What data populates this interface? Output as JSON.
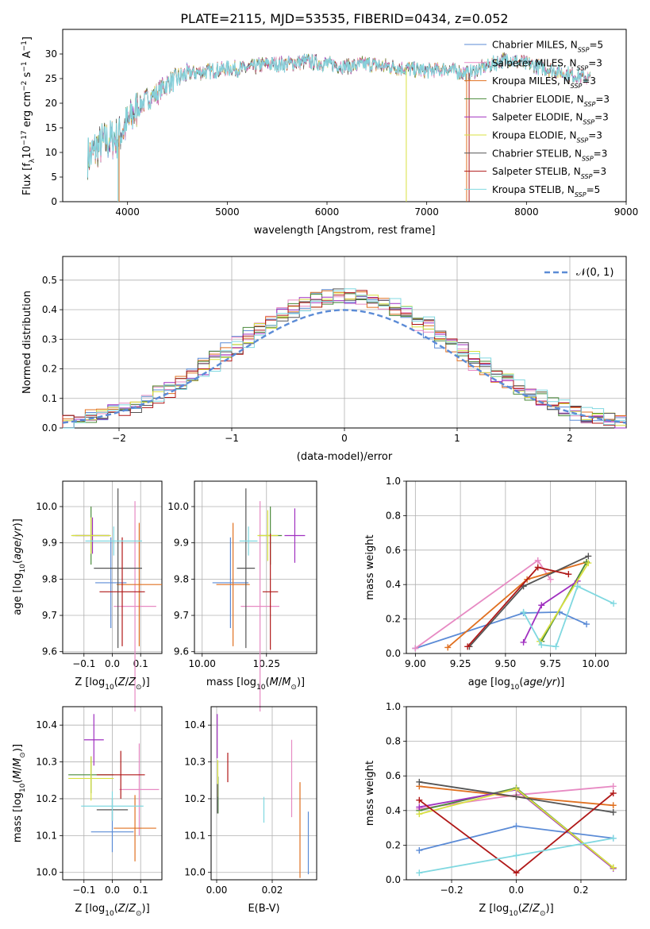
{
  "figure": {
    "title": "PLATE=2115, MJD=53535, FIBERID=0434, z=0.052"
  },
  "palette": {
    "Chabrier MILES": "#5b8bd6",
    "Salpeter MILES": "#e78ac3",
    "Kroupa MILES": "#e07020",
    "Chabrier ELODIE": "#4a8a3a",
    "Salpeter ELODIE": "#a030c0",
    "Kroupa ELODIE": "#d8e040",
    "Chabrier STELIB": "#555555",
    "Salpeter STELIB": "#b01818",
    "Kroupa STELIB": "#80d8e0"
  },
  "chart_data": [
    {
      "id": "spectrum",
      "type": "line",
      "xlabel": "wavelength [Angstrom, rest frame]",
      "ylabel": "Flux [f",
      "ylabel_html": [
        "Flux [f",
        "λ",
        "10",
        "−17",
        " erg cm",
        "−2",
        " s",
        "−1",
        " A",
        "−1",
        "]"
      ],
      "xlim": [
        3350,
        9000
      ],
      "ylim": [
        0,
        35
      ],
      "xticks": [
        4000,
        5000,
        6000,
        7000,
        8000,
        9000
      ],
      "yticks": [
        0,
        5,
        10,
        15,
        20,
        25,
        30
      ],
      "legend_position": "top-right",
      "continuum_points": [
        [
          3600,
          9
        ],
        [
          3750,
          12
        ],
        [
          3900,
          13
        ],
        [
          4000,
          16
        ],
        [
          4100,
          19
        ],
        [
          4200,
          21
        ],
        [
          4300,
          22
        ],
        [
          4400,
          24
        ],
        [
          4600,
          26
        ],
        [
          4800,
          26.5
        ],
        [
          5000,
          27
        ],
        [
          5200,
          27
        ],
        [
          5400,
          28
        ],
        [
          5600,
          28
        ],
        [
          5800,
          28.5
        ],
        [
          6000,
          28
        ],
        [
          6200,
          27.5
        ],
        [
          6400,
          28
        ],
        [
          6600,
          27.5
        ],
        [
          6800,
          27
        ],
        [
          7000,
          26.5
        ],
        [
          7200,
          27
        ],
        [
          7400,
          26
        ],
        [
          7600,
          27.5
        ],
        [
          7800,
          29
        ],
        [
          8000,
          28
        ],
        [
          8200,
          27
        ],
        [
          8400,
          26
        ],
        [
          8640,
          25
        ]
      ],
      "series": [
        {
          "name": "Chabrier MILES",
          "nssp": "5"
        },
        {
          "name": "Salpeter MILES",
          "nssp": "3"
        },
        {
          "name": "Kroupa MILES",
          "nssp": "3"
        },
        {
          "name": "Chabrier ELODIE",
          "nssp": "3"
        },
        {
          "name": "Salpeter ELODIE",
          "nssp": "3"
        },
        {
          "name": "Kroupa ELODIE",
          "nssp": "3"
        },
        {
          "name": "Chabrier STELIB",
          "nssp": "3"
        },
        {
          "name": "Salpeter STELIB",
          "nssp": "3"
        },
        {
          "name": "Kroupa STELIB",
          "nssp": "5"
        }
      ]
    },
    {
      "id": "residuals",
      "type": "area",
      "xlabel": "(data-model)/error",
      "ylabel": "Normed distribution",
      "xlim": [
        -2.5,
        2.5
      ],
      "ylim": [
        0,
        0.58
      ],
      "xticks": [
        -2,
        -1,
        0,
        1,
        2
      ],
      "yticks": [
        0.0,
        0.1,
        0.2,
        0.3,
        0.4,
        0.5
      ],
      "legend_position": "top-right",
      "legend_label": "𝒩(0, 1)",
      "bin_width": 0.1
    },
    {
      "id": "z-age",
      "type": "scatter",
      "xlabel": "Z [log10(Z/Z⊙)]",
      "ylabel": "age  [log10(age/yr)]",
      "xlim": [
        -0.175,
        0.175
      ],
      "ylim": [
        9.595,
        10.07
      ],
      "xticks": [
        -0.1,
        0.0,
        0.1
      ],
      "yticks": [
        9.6,
        9.7,
        9.8,
        9.9,
        10.0
      ],
      "points": [
        {
          "name": "Chabrier MILES",
          "x": -0.005,
          "y": 9.79,
          "xerr": 0.055,
          "yerr": 0.125
        },
        {
          "name": "Salpeter MILES",
          "x": 0.08,
          "y": 9.725,
          "xerr": 0.075,
          "yerr": 0.29
        },
        {
          "name": "Kroupa MILES",
          "x": 0.095,
          "y": 9.785,
          "xerr": 0.08,
          "yerr": 0.17
        },
        {
          "name": "Chabrier ELODIE",
          "x": -0.075,
          "y": 9.92,
          "xerr": 0.065,
          "yerr": 0.08
        },
        {
          "name": "Salpeter ELODIE",
          "x": -0.07,
          "y": 9.92,
          "xerr": 0.06,
          "yerr": 0.05
        },
        {
          "name": "Kroupa ELODIE",
          "x": -0.075,
          "y": 9.92,
          "xerr": 0.07,
          "yerr": 0.05
        },
        {
          "name": "Chabrier STELIB",
          "x": 0.02,
          "y": 9.83,
          "xerr": 0.085,
          "yerr": 0.22
        },
        {
          "name": "Salpeter STELIB",
          "x": 0.035,
          "y": 9.765,
          "xerr": 0.08,
          "yerr": 0.15
        },
        {
          "name": "Kroupa STELIB",
          "x": 0.005,
          "y": 9.905,
          "xerr": 0.1,
          "yerr": 0.04
        }
      ]
    },
    {
      "id": "mass-age",
      "type": "scatter",
      "xlabel": "mass [log10(M/M⊙)]",
      "ylabel": "",
      "xlim": [
        9.97,
        10.445
      ],
      "ylim": [
        9.595,
        10.07
      ],
      "xticks": [
        10.0,
        10.25
      ],
      "yticks": [
        9.6,
        9.7,
        9.8,
        9.9,
        10.0
      ],
      "points": [
        {
          "name": "Chabrier MILES",
          "x": 10.11,
          "y": 9.79,
          "xerr": 0.07,
          "yerr": 0.125
        },
        {
          "name": "Salpeter MILES",
          "x": 10.225,
          "y": 9.725,
          "xerr": 0.075,
          "yerr": 0.29
        },
        {
          "name": "Kroupa MILES",
          "x": 10.12,
          "y": 9.785,
          "xerr": 0.065,
          "yerr": 0.17
        },
        {
          "name": "Chabrier ELODIE",
          "x": 10.265,
          "y": 9.92,
          "xerr": 0.045,
          "yerr": 0.08
        },
        {
          "name": "Salpeter ELODIE",
          "x": 10.36,
          "y": 9.92,
          "xerr": 0.04,
          "yerr": 0.075
        },
        {
          "name": "Kroupa ELODIE",
          "x": 10.255,
          "y": 9.92,
          "xerr": 0.04,
          "yerr": 0.07
        },
        {
          "name": "Chabrier STELIB",
          "x": 10.17,
          "y": 9.83,
          "xerr": 0.035,
          "yerr": 0.22
        },
        {
          "name": "Salpeter STELIB",
          "x": 10.265,
          "y": 9.765,
          "xerr": 0.03,
          "yerr": 0.16
        },
        {
          "name": "Kroupa STELIB",
          "x": 10.18,
          "y": 9.905,
          "xerr": 0.035,
          "yerr": 0.04
        }
      ]
    },
    {
      "id": "age-weight",
      "type": "line",
      "xlabel": "age  [log10(age/yr)]",
      "ylabel": "mass weight",
      "xlim": [
        8.95,
        10.17
      ],
      "ylim": [
        0,
        1.0
      ],
      "xticks": [
        9.0,
        9.25,
        9.5,
        9.75,
        10.0
      ],
      "yticks": [
        0.0,
        0.2,
        0.4,
        0.6,
        0.8,
        1.0
      ],
      "series": [
        {
          "name": "Chabrier MILES",
          "x": [
            9.0,
            9.6,
            9.8,
            9.95
          ],
          "y": [
            0.03,
            0.235,
            0.24,
            0.17
          ]
        },
        {
          "name": "Salpeter MILES",
          "x": [
            9.0,
            9.68,
            9.75
          ],
          "y": [
            0.03,
            0.54,
            0.43
          ]
        },
        {
          "name": "Kroupa MILES",
          "x": [
            9.18,
            9.62,
            9.95
          ],
          "y": [
            0.035,
            0.43,
            0.53
          ]
        },
        {
          "name": "Chabrier ELODIE",
          "x": [
            9.7,
            9.95
          ],
          "y": [
            0.07,
            0.53
          ]
        },
        {
          "name": "Salpeter ELODIE",
          "x": [
            9.6,
            9.7,
            9.9
          ],
          "y": [
            0.065,
            0.28,
            0.42
          ]
        },
        {
          "name": "Kroupa ELODIE",
          "x": [
            9.69,
            9.96
          ],
          "y": [
            0.07,
            0.525
          ]
        },
        {
          "name": "Chabrier STELIB",
          "x": [
            9.3,
            9.6,
            9.96
          ],
          "y": [
            0.04,
            0.39,
            0.565
          ]
        },
        {
          "name": "Salpeter STELIB",
          "x": [
            9.29,
            9.68,
            9.85
          ],
          "y": [
            0.04,
            0.5,
            0.46
          ]
        },
        {
          "name": "Kroupa STELIB",
          "x": [
            9.6,
            9.7,
            9.78,
            9.9,
            10.1
          ],
          "y": [
            0.24,
            0.05,
            0.04,
            0.39,
            0.29
          ]
        }
      ]
    },
    {
      "id": "z-mass",
      "type": "scatter",
      "xlabel": "Z [log10(Z/Z⊙)]",
      "ylabel": "mass [log10(M/M⊙)]",
      "xlim": [
        -0.175,
        0.175
      ],
      "ylim": [
        9.98,
        10.45
      ],
      "xticks": [
        -0.1,
        0.0,
        0.1
      ],
      "yticks": [
        10.0,
        10.1,
        10.2,
        10.3,
        10.4
      ],
      "points": [
        {
          "name": "Chabrier MILES",
          "x": 0.0,
          "y": 10.11,
          "xerr": 0.075,
          "yerr": 0.055
        },
        {
          "name": "Salpeter MILES",
          "x": 0.095,
          "y": 10.225,
          "xerr": 0.07,
          "yerr": 0.125
        },
        {
          "name": "Kroupa MILES",
          "x": 0.08,
          "y": 10.12,
          "xerr": 0.075,
          "yerr": 0.09
        },
        {
          "name": "Chabrier ELODIE",
          "x": -0.075,
          "y": 10.265,
          "xerr": 0.08,
          "yerr": 0.05
        },
        {
          "name": "Salpeter ELODIE",
          "x": -0.065,
          "y": 10.36,
          "xerr": 0.035,
          "yerr": 0.07
        },
        {
          "name": "Kroupa ELODIE",
          "x": -0.075,
          "y": 10.255,
          "xerr": 0.08,
          "yerr": 0.06
        },
        {
          "name": "Chabrier STELIB",
          "x": 0.0,
          "y": 10.17,
          "xerr": 0.055,
          "yerr": 0.03
        },
        {
          "name": "Salpeter STELIB",
          "x": 0.03,
          "y": 10.265,
          "xerr": 0.085,
          "yerr": 0.065
        },
        {
          "name": "Kroupa STELIB",
          "x": 0.0,
          "y": 10.18,
          "xerr": 0.11,
          "yerr": 0.04
        }
      ]
    },
    {
      "id": "ebv",
      "type": "scatter",
      "xlabel": "E(B-V)",
      "ylabel": "",
      "xlim": [
        -0.002,
        0.036
      ],
      "ylim": [
        9.98,
        10.45
      ],
      "xticks": [
        0.0,
        0.02
      ],
      "xtick_labels": [
        "0.00",
        "0.02"
      ],
      "yticks": [
        10.0,
        10.1,
        10.2,
        10.3,
        10.4
      ],
      "points": [
        {
          "name": "Chabrier MILES",
          "x": 0.033,
          "y": 10.08,
          "xerr": 0,
          "yerr": 0.085
        },
        {
          "name": "Salpeter MILES",
          "x": 0.027,
          "y": 10.255,
          "xerr": 0,
          "yerr": 0.105
        },
        {
          "name": "Kroupa MILES",
          "x": 0.03,
          "y": 10.115,
          "xerr": 0,
          "yerr": 0.13
        },
        {
          "name": "Chabrier ELODIE",
          "x": 0.0005,
          "y": 10.21,
          "xerr": 0,
          "yerr": 0.05
        },
        {
          "name": "Salpeter ELODIE",
          "x": 0.0002,
          "y": 10.37,
          "xerr": 0,
          "yerr": 0.06
        },
        {
          "name": "Kroupa ELODIE",
          "x": 0.0004,
          "y": 10.255,
          "xerr": 0,
          "yerr": 0.05
        },
        {
          "name": "Chabrier STELIB",
          "x": 0.0003,
          "y": 10.2,
          "xerr": 0,
          "yerr": 0.04
        },
        {
          "name": "Salpeter STELIB",
          "x": 0.004,
          "y": 10.285,
          "xerr": 0,
          "yerr": 0.04
        },
        {
          "name": "Kroupa STELIB",
          "x": 0.017,
          "y": 10.17,
          "xerr": 0,
          "yerr": 0.035
        }
      ]
    },
    {
      "id": "z-weight",
      "type": "line",
      "xlabel": "Z [log10(Z/Z⊙)]",
      "ylabel": "mass weight",
      "xlim": [
        -0.34,
        0.34
      ],
      "ylim": [
        0,
        1.0
      ],
      "xticks": [
        -0.2,
        0.0,
        0.2
      ],
      "yticks": [
        0.0,
        0.2,
        0.4,
        0.6,
        0.8,
        1.0
      ],
      "series": [
        {
          "name": "Chabrier MILES",
          "x": [
            -0.3,
            0.0,
            0.3
          ],
          "y": [
            0.17,
            0.31,
            0.24
          ]
        },
        {
          "name": "Salpeter MILES",
          "x": [
            -0.3,
            0.0,
            0.3
          ],
          "y": [
            0.41,
            0.49,
            0.54
          ]
        },
        {
          "name": "Kroupa MILES",
          "x": [
            -0.3,
            0.0,
            0.3
          ],
          "y": [
            0.54,
            0.48,
            0.43
          ]
        },
        {
          "name": "Chabrier ELODIE",
          "x": [
            -0.3,
            0.0,
            0.3
          ],
          "y": [
            0.4,
            0.53,
            0.07
          ]
        },
        {
          "name": "Salpeter ELODIE",
          "x": [
            -0.3,
            0.0,
            0.3
          ],
          "y": [
            0.42,
            0.52,
            0.065
          ]
        },
        {
          "name": "Kroupa ELODIE",
          "x": [
            -0.3,
            0.0,
            0.3
          ],
          "y": [
            0.38,
            0.525,
            0.07
          ]
        },
        {
          "name": "Chabrier STELIB",
          "x": [
            -0.3,
            0.0,
            0.3
          ],
          "y": [
            0.565,
            0.48,
            0.39
          ]
        },
        {
          "name": "Salpeter STELIB",
          "x": [
            -0.3,
            0.0,
            0.3
          ],
          "y": [
            0.46,
            0.04,
            0.5
          ]
        },
        {
          "name": "Kroupa STELIB",
          "x": [
            -0.3,
            0.0,
            0.3
          ],
          "y": [
            0.04,
            0.14,
            0.24
          ]
        }
      ]
    }
  ]
}
